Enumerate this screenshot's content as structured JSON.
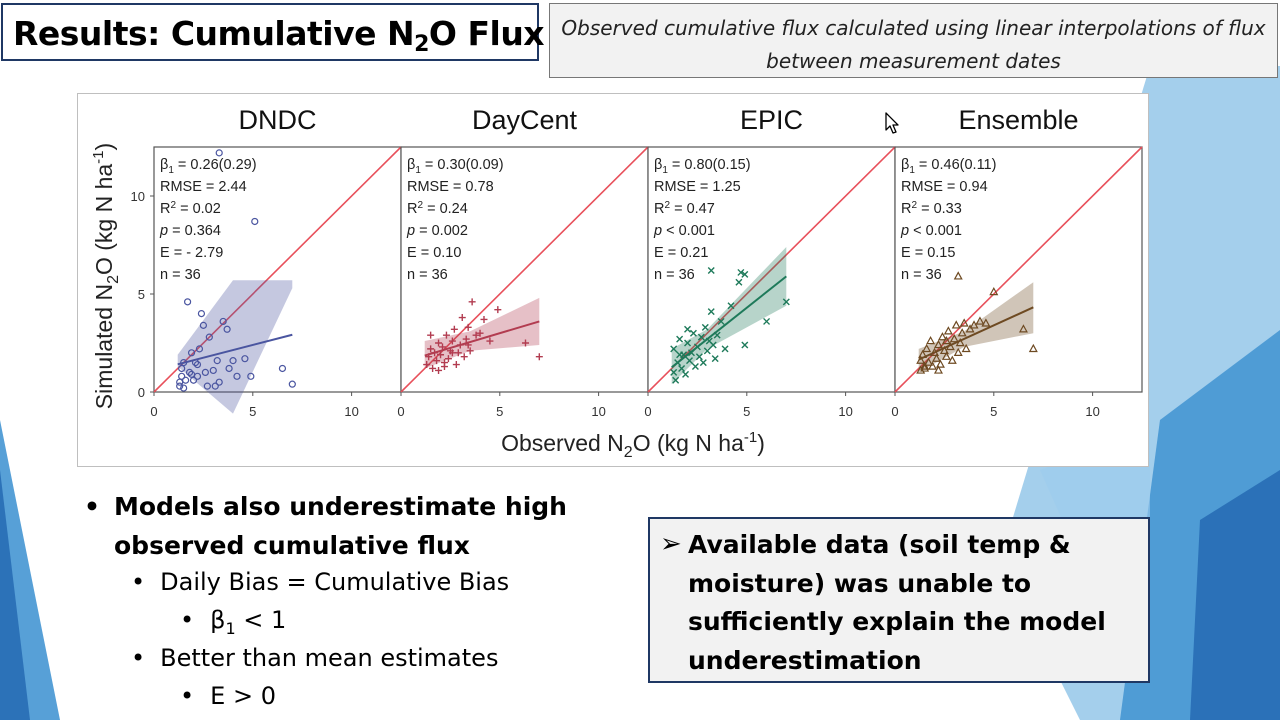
{
  "slide": {
    "title_pre": "Results: Cumulative N",
    "title_sub": "2",
    "title_post": "O Flux",
    "note": "Observed cumulative flux calculated using linear interpolations of flux between measurement dates"
  },
  "colors": {
    "title_border": "#1f3864",
    "one_to_one_line": "#e8505b",
    "background_accent": "#3a8fd0"
  },
  "figure": {
    "ylabel_pre": "Simulated N",
    "ylabel_sub": "2",
    "ylabel_mid": "O (kg N ha",
    "ylabel_sup": "-1",
    "ylabel_post": ")",
    "xlabel_pre": "Observed N",
    "xlabel_sub": "2",
    "xlabel_mid": "O (kg N ha",
    "xlabel_sup": "-1",
    "xlabel_post": ")"
  },
  "chart_data": [
    {
      "type": "scatter",
      "title": "DNDC",
      "xlim": [
        0,
        12.5
      ],
      "ylim": [
        0,
        12.5
      ],
      "xticks": [
        0,
        5,
        10
      ],
      "yticks": [
        0,
        5,
        10
      ],
      "color": "#4a55a0",
      "marker": "circle",
      "one_to_one": true,
      "stats": {
        "beta": "0.26(0.29)",
        "rmse": "2.44",
        "r2": "0.02",
        "p": "= 0.364",
        "e": "- 2.79",
        "n": "36"
      },
      "fit": {
        "slope": 0.26,
        "intercept": 1.1,
        "x_range": [
          1.2,
          7
        ]
      },
      "band": [
        [
          1.2,
          1.6,
          0.3
        ],
        [
          4,
          2.3,
          3.4
        ],
        [
          7,
          5.5,
          0.2
        ]
      ],
      "points": [
        [
          1.3,
          0.3
        ],
        [
          1.3,
          0.5
        ],
        [
          1.4,
          0.8
        ],
        [
          1.4,
          1.2
        ],
        [
          1.5,
          0.2
        ],
        [
          1.5,
          1.5
        ],
        [
          1.6,
          0.6
        ],
        [
          1.7,
          4.6
        ],
        [
          1.8,
          1.0
        ],
        [
          1.9,
          2.0
        ],
        [
          2.0,
          0.6
        ],
        [
          2.1,
          1.5
        ],
        [
          2.2,
          0.8
        ],
        [
          2.3,
          2.2
        ],
        [
          2.4,
          4.0
        ],
        [
          2.5,
          3.4
        ],
        [
          2.6,
          1.0
        ],
        [
          2.7,
          0.3
        ],
        [
          2.8,
          2.8
        ],
        [
          3.0,
          1.1
        ],
        [
          3.1,
          0.3
        ],
        [
          3.2,
          1.6
        ],
        [
          3.3,
          0.5
        ],
        [
          3.5,
          3.6
        ],
        [
          3.7,
          3.2
        ],
        [
          3.8,
          1.2
        ],
        [
          4.0,
          1.6
        ],
        [
          4.2,
          0.8
        ],
        [
          4.6,
          1.7
        ],
        [
          4.9,
          0.8
        ],
        [
          5.1,
          8.7
        ],
        [
          3.3,
          12.2
        ],
        [
          6.5,
          1.2
        ],
        [
          7.0,
          0.4
        ],
        [
          2.2,
          1.4
        ],
        [
          1.9,
          0.9
        ]
      ]
    },
    {
      "type": "scatter",
      "title": "DayCent",
      "xlim": [
        0,
        12.5
      ],
      "ylim": [
        0,
        12.5
      ],
      "xticks": [
        0,
        5,
        10
      ],
      "yticks": [
        0,
        5,
        10
      ],
      "color": "#b23c50",
      "marker": "plus",
      "one_to_one": true,
      "stats": {
        "beta": "0.30(0.09)",
        "rmse": "0.78",
        "r2": "0.24",
        "p": "= 0.002",
        "e": "0.10",
        "n": "36"
      },
      "fit": {
        "slope": 0.3,
        "intercept": 1.5,
        "x_range": [
          1.2,
          7
        ]
      },
      "band": [
        [
          1.2,
          1.9,
          0.7
        ],
        [
          3.5,
          2.6,
          0.5
        ],
        [
          7,
          3.6,
          1.2
        ]
      ],
      "points": [
        [
          1.3,
          1.4
        ],
        [
          1.4,
          1.8
        ],
        [
          1.5,
          2.2
        ],
        [
          1.6,
          1.2
        ],
        [
          1.7,
          2.0
        ],
        [
          1.8,
          1.6
        ],
        [
          1.9,
          2.5
        ],
        [
          2.0,
          1.9
        ],
        [
          2.1,
          2.3
        ],
        [
          2.2,
          1.5
        ],
        [
          2.3,
          2.9
        ],
        [
          2.4,
          1.7
        ],
        [
          2.5,
          2.1
        ],
        [
          2.6,
          2.6
        ],
        [
          2.7,
          3.2
        ],
        [
          2.8,
          1.4
        ],
        [
          2.9,
          2.0
        ],
        [
          3.0,
          2.4
        ],
        [
          3.1,
          3.8
        ],
        [
          3.2,
          1.8
        ],
        [
          3.3,
          2.7
        ],
        [
          3.4,
          3.3
        ],
        [
          3.5,
          2.1
        ],
        [
          3.6,
          4.6
        ],
        [
          3.8,
          2.9
        ],
        [
          4.0,
          3.0
        ],
        [
          4.2,
          3.7
        ],
        [
          4.5,
          2.6
        ],
        [
          4.9,
          4.2
        ],
        [
          6.3,
          2.5
        ],
        [
          7.0,
          1.8
        ],
        [
          1.5,
          2.9
        ],
        [
          2.2,
          1.3
        ],
        [
          2.6,
          2.0
        ],
        [
          3.4,
          2.4
        ],
        [
          1.9,
          1.1
        ]
      ]
    },
    {
      "type": "scatter",
      "title": "EPIC",
      "xlim": [
        0,
        12.5
      ],
      "ylim": [
        0,
        12.5
      ],
      "xticks": [
        0,
        5,
        10
      ],
      "yticks": [
        0,
        5,
        10
      ],
      "color": "#1e7a5a",
      "marker": "cross",
      "one_to_one": true,
      "stats": {
        "beta": "0.80(0.15)",
        "rmse": "1.25",
        "r2": "0.47",
        "p": "< 0.001",
        "e": "0.21",
        "n": "36"
      },
      "fit": {
        "slope": 0.8,
        "intercept": 0.3,
        "x_range": [
          1.2,
          7
        ]
      },
      "band": [
        [
          1.2,
          1.3,
          0.9
        ],
        [
          3,
          2.7,
          0.5
        ],
        [
          7,
          5.9,
          1.5
        ]
      ],
      "points": [
        [
          1.3,
          1.0
        ],
        [
          1.3,
          2.2
        ],
        [
          1.4,
          0.6
        ],
        [
          1.5,
          1.5
        ],
        [
          1.6,
          2.7
        ],
        [
          1.7,
          1.2
        ],
        [
          1.8,
          1.9
        ],
        [
          1.9,
          0.9
        ],
        [
          2.0,
          2.5
        ],
        [
          2.1,
          1.6
        ],
        [
          2.2,
          2.0
        ],
        [
          2.3,
          3.0
        ],
        [
          2.4,
          1.3
        ],
        [
          2.5,
          2.3
        ],
        [
          2.6,
          1.8
        ],
        [
          2.7,
          2.8
        ],
        [
          2.8,
          1.5
        ],
        [
          2.9,
          3.3
        ],
        [
          3.0,
          2.1
        ],
        [
          3.1,
          2.6
        ],
        [
          3.2,
          4.1
        ],
        [
          3.3,
          2.4
        ],
        [
          3.4,
          1.7
        ],
        [
          3.5,
          2.9
        ],
        [
          3.7,
          3.6
        ],
        [
          3.9,
          2.2
        ],
        [
          4.2,
          4.4
        ],
        [
          4.6,
          5.6
        ],
        [
          4.7,
          6.1
        ],
        [
          4.9,
          6.0
        ],
        [
          3.2,
          6.2
        ],
        [
          4.9,
          2.4
        ],
        [
          6.0,
          3.6
        ],
        [
          7.0,
          4.6
        ],
        [
          2.0,
          3.2
        ],
        [
          1.6,
          1.9
        ]
      ]
    },
    {
      "type": "scatter",
      "title": "Ensemble",
      "xlim": [
        0,
        12.5
      ],
      "ylim": [
        0,
        12.5
      ],
      "xticks": [
        0,
        5,
        10
      ],
      "yticks": [
        0,
        5,
        10
      ],
      "color": "#6e4a22",
      "marker": "triangle",
      "one_to_one": true,
      "stats": {
        "beta": "0.46(0.11)",
        "rmse": "0.94",
        "r2": "0.33",
        "p": "< 0.001",
        "e": "0.15",
        "n": "36"
      },
      "fit": {
        "slope": 0.46,
        "intercept": 1.1,
        "x_range": [
          1.2,
          7
        ]
      },
      "band": [
        [
          1.2,
          1.6,
          0.6
        ],
        [
          3.5,
          2.7,
          0.4
        ],
        [
          7,
          4.3,
          1.3
        ]
      ],
      "points": [
        [
          1.3,
          1.1
        ],
        [
          1.3,
          1.6
        ],
        [
          1.4,
          1.9
        ],
        [
          1.5,
          1.2
        ],
        [
          1.6,
          2.2
        ],
        [
          1.7,
          1.5
        ],
        [
          1.8,
          2.6
        ],
        [
          1.9,
          1.3
        ],
        [
          2.0,
          2.0
        ],
        [
          2.1,
          1.7
        ],
        [
          2.2,
          2.4
        ],
        [
          2.3,
          1.4
        ],
        [
          2.4,
          2.8
        ],
        [
          2.5,
          2.1
        ],
        [
          2.6,
          1.8
        ],
        [
          2.7,
          3.1
        ],
        [
          2.8,
          2.3
        ],
        [
          2.9,
          1.6
        ],
        [
          3.0,
          2.7
        ],
        [
          3.1,
          3.4
        ],
        [
          3.2,
          2.0
        ],
        [
          3.3,
          2.5
        ],
        [
          3.4,
          3.0
        ],
        [
          3.5,
          3.5
        ],
        [
          3.6,
          2.2
        ],
        [
          3.8,
          3.2
        ],
        [
          4.0,
          3.4
        ],
        [
          4.3,
          3.6
        ],
        [
          4.6,
          3.5
        ],
        [
          5.0,
          5.1
        ],
        [
          3.2,
          5.9
        ],
        [
          6.5,
          3.2
        ],
        [
          7.0,
          2.2
        ],
        [
          1.5,
          1.3
        ],
        [
          2.2,
          1.1
        ],
        [
          2.6,
          2.6
        ]
      ]
    }
  ],
  "bullets": {
    "main": "Models also underestimate high observed cumulative flux",
    "main_line1": "Models also underestimate high",
    "main_line2": "observed cumulative flux",
    "sub1": "Daily Bias = Cumulative Bias",
    "sub1_detail_pre": "β",
    "sub1_detail_sub": "1",
    "sub1_detail_post": " < 1",
    "sub2": "Better than mean estimates",
    "sub2_detail": "E > 0"
  },
  "callout": {
    "arrow": "➢",
    "text": "Available data (soil temp & moisture) was unable to sufficiently explain the model underestimation"
  }
}
